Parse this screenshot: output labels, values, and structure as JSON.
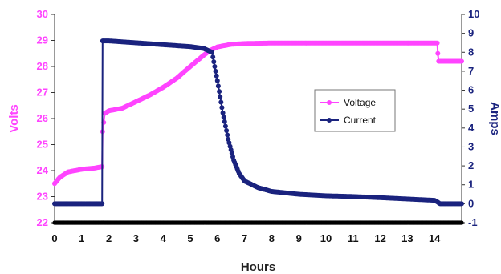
{
  "chart_data": {
    "type": "line",
    "xlabel": "Hours",
    "ylabel_left": "Volts",
    "ylabel_right": "Amps",
    "x_range": [
      0,
      15
    ],
    "y_left_range": [
      22,
      30
    ],
    "y_right_range": [
      -1,
      10
    ],
    "x_ticks": [
      "0",
      "1",
      "2",
      "3",
      "4",
      "5",
      "6",
      "7",
      "8",
      "9",
      "10",
      "11",
      "12",
      "13",
      "14"
    ],
    "y_left_ticks": [
      "22",
      "23",
      "24",
      "25",
      "26",
      "27",
      "28",
      "29",
      "30"
    ],
    "y_right_ticks": [
      "-1",
      "0",
      "1",
      "2",
      "3",
      "4",
      "5",
      "6",
      "7",
      "8",
      "9",
      "10"
    ],
    "legend_placement": "center-right",
    "grid": false,
    "series": [
      {
        "name": "Voltage",
        "axis": "left",
        "color": "#ff44ff",
        "points": [
          [
            0,
            23.5
          ],
          [
            0.2,
            23.75
          ],
          [
            0.5,
            23.95
          ],
          [
            1.0,
            24.05
          ],
          [
            1.5,
            24.1
          ],
          [
            1.75,
            24.15
          ],
          [
            1.77,
            25.5
          ],
          [
            1.85,
            26.2
          ],
          [
            2.0,
            26.3
          ],
          [
            2.5,
            26.4
          ],
          [
            3.0,
            26.65
          ],
          [
            3.5,
            26.9
          ],
          [
            4.0,
            27.2
          ],
          [
            4.5,
            27.55
          ],
          [
            5.0,
            28.0
          ],
          [
            5.4,
            28.35
          ],
          [
            5.7,
            28.6
          ],
          [
            6.0,
            28.75
          ],
          [
            6.5,
            28.85
          ],
          [
            7.0,
            28.88
          ],
          [
            8.0,
            28.9
          ],
          [
            10.0,
            28.9
          ],
          [
            12.0,
            28.9
          ],
          [
            13.0,
            28.9
          ],
          [
            14.1,
            28.9
          ],
          [
            14.12,
            28.5
          ],
          [
            14.15,
            28.2
          ],
          [
            14.5,
            28.2
          ],
          [
            15.0,
            28.2
          ]
        ]
      },
      {
        "name": "Current",
        "axis": "right",
        "color": "#1a237e",
        "points": [
          [
            0,
            0
          ],
          [
            1.75,
            0
          ],
          [
            1.77,
            8.6
          ],
          [
            2.0,
            8.6
          ],
          [
            2.5,
            8.55
          ],
          [
            3.0,
            8.5
          ],
          [
            4.0,
            8.4
          ],
          [
            5.0,
            8.3
          ],
          [
            5.5,
            8.2
          ],
          [
            5.8,
            8.0
          ],
          [
            6.0,
            6.5
          ],
          [
            6.2,
            4.8
          ],
          [
            6.4,
            3.4
          ],
          [
            6.6,
            2.3
          ],
          [
            6.8,
            1.6
          ],
          [
            7.0,
            1.2
          ],
          [
            7.5,
            0.85
          ],
          [
            8.0,
            0.65
          ],
          [
            9.0,
            0.5
          ],
          [
            10.0,
            0.42
          ],
          [
            11.0,
            0.38
          ],
          [
            12.0,
            0.32
          ],
          [
            13.0,
            0.25
          ],
          [
            14.0,
            0.18
          ],
          [
            14.1,
            0.1
          ],
          [
            14.2,
            0.0
          ],
          [
            15.0,
            0.0
          ]
        ]
      },
      {
        "name": "",
        "axis": "left",
        "color": "#000000",
        "points": [
          [
            0,
            22
          ],
          [
            15,
            22
          ]
        ]
      }
    ]
  }
}
